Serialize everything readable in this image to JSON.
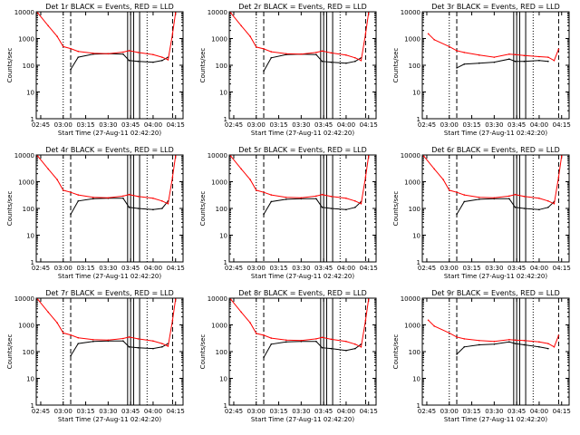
{
  "figure": {
    "xlabel": "Start Time (27-Aug-11 02:42:20)",
    "ylabel": "Counts/sec",
    "x_ticks": [
      "02:45",
      "03:00",
      "03:15",
      "03:30",
      "03:45",
      "04:00",
      "04:15"
    ],
    "y_ticks": [
      "1",
      "10",
      "100",
      "1000",
      "10000"
    ],
    "colors": {
      "events": "#000000",
      "lld": "#ff0000",
      "axis": "#000000"
    }
  },
  "chart_data": [
    {
      "type": "line",
      "title": "Det 1r BLACK = Events, RED = LLD",
      "xlim": [
        "02:42",
        "04:20"
      ],
      "ylim": [
        1,
        10000
      ],
      "yscale": "log",
      "x": [
        "02:43",
        "02:50",
        "02:56",
        "03:00",
        "03:05",
        "03:10",
        "03:20",
        "03:30",
        "03:40",
        "03:44",
        "03:50",
        "04:00",
        "04:06",
        "04:10",
        "04:13",
        "04:15"
      ],
      "series": [
        {
          "name": "Events",
          "values": [
            null,
            null,
            null,
            null,
            70,
            200,
            260,
            270,
            260,
            150,
            140,
            130,
            150,
            200,
            null,
            null
          ]
        },
        {
          "name": "LLD",
          "values": [
            9000,
            3000,
            1200,
            500,
            420,
            330,
            280,
            270,
            310,
            350,
            300,
            250,
            200,
            160,
            1500,
            9000
          ]
        }
      ],
      "markers": {
        "dotted": [
          "03:00",
          "03:56"
        ],
        "dashed": [
          "03:05",
          "04:13"
        ],
        "solid": [
          "03:43",
          "03:45",
          "03:47",
          "03:51"
        ]
      }
    },
    {
      "type": "line",
      "title": "Det 2r BLACK = Events, RED = LLD",
      "xlim": [
        "02:42",
        "04:20"
      ],
      "ylim": [
        1,
        10000
      ],
      "yscale": "log",
      "x": [
        "02:43",
        "02:50",
        "02:56",
        "03:00",
        "03:05",
        "03:10",
        "03:20",
        "03:30",
        "03:40",
        "03:44",
        "03:50",
        "04:00",
        "04:06",
        "04:10",
        "04:13",
        "04:15"
      ],
      "series": [
        {
          "name": "Events",
          "values": [
            null,
            null,
            null,
            null,
            60,
            190,
            250,
            260,
            250,
            140,
            130,
            120,
            140,
            190,
            null,
            null
          ]
        },
        {
          "name": "LLD",
          "values": [
            9000,
            3000,
            1200,
            480,
            410,
            320,
            270,
            260,
            300,
            340,
            290,
            240,
            190,
            150,
            1500,
            9000
          ]
        }
      ],
      "markers": {
        "dotted": [
          "03:00",
          "03:56"
        ],
        "dashed": [
          "03:05",
          "04:13"
        ],
        "solid": [
          "03:43",
          "03:45",
          "03:47",
          "03:51"
        ]
      }
    },
    {
      "type": "line",
      "title": "Det 3r BLACK = Events, RED = LLD",
      "xlim": [
        "02:42",
        "04:20"
      ],
      "ylim": [
        1,
        10000
      ],
      "yscale": "log",
      "x": [
        "02:46",
        "02:50",
        "03:00",
        "03:05",
        "03:10",
        "03:20",
        "03:30",
        "03:40",
        "03:44",
        "03:50",
        "04:00",
        "04:06",
        "04:10",
        "04:13"
      ],
      "series": [
        {
          "name": "Events",
          "values": [
            null,
            null,
            null,
            80,
            110,
            120,
            130,
            170,
            140,
            140,
            150,
            140,
            null,
            null
          ]
        },
        {
          "name": "LLD",
          "values": [
            1500,
            900,
            500,
            350,
            300,
            240,
            200,
            260,
            250,
            230,
            210,
            200,
            150,
            400
          ]
        }
      ],
      "markers": {
        "dotted": [
          "03:00",
          "03:56"
        ],
        "dashed": [
          "03:05",
          "04:13"
        ],
        "solid": [
          "03:43",
          "03:45",
          "03:47",
          "03:51"
        ]
      }
    },
    {
      "type": "line",
      "title": "Det 4r BLACK = Events, RED = LLD",
      "xlim": [
        "02:42",
        "04:20"
      ],
      "ylim": [
        1,
        10000
      ],
      "yscale": "log",
      "x": [
        "02:43",
        "02:50",
        "02:56",
        "03:00",
        "03:05",
        "03:10",
        "03:20",
        "03:30",
        "03:40",
        "03:44",
        "03:50",
        "04:00",
        "04:06",
        "04:10",
        "04:13",
        "04:15"
      ],
      "series": [
        {
          "name": "Events",
          "values": [
            null,
            null,
            null,
            null,
            60,
            190,
            230,
            240,
            240,
            110,
            100,
            90,
            100,
            190,
            null,
            null
          ]
        },
        {
          "name": "LLD",
          "values": [
            9000,
            3000,
            1200,
            480,
            400,
            320,
            260,
            250,
            290,
            330,
            280,
            240,
            190,
            150,
            1500,
            9000
          ]
        }
      ],
      "markers": {
        "dotted": [
          "03:00",
          "03:56"
        ],
        "dashed": [
          "03:05",
          "04:13"
        ],
        "solid": [
          "03:43",
          "03:45",
          "03:47",
          "03:51"
        ]
      }
    },
    {
      "type": "line",
      "title": "Det 5r BLACK = Events, RED = LLD",
      "xlim": [
        "02:42",
        "04:20"
      ],
      "ylim": [
        1,
        10000
      ],
      "yscale": "log",
      "x": [
        "02:43",
        "02:50",
        "02:56",
        "03:00",
        "03:05",
        "03:10",
        "03:20",
        "03:30",
        "03:40",
        "03:44",
        "03:50",
        "04:00",
        "04:06",
        "04:10",
        "04:13",
        "04:15"
      ],
      "series": [
        {
          "name": "Events",
          "values": [
            null,
            null,
            null,
            null,
            60,
            180,
            220,
            230,
            230,
            110,
            100,
            90,
            110,
            180,
            null,
            null
          ]
        },
        {
          "name": "LLD",
          "values": [
            9000,
            3000,
            1200,
            480,
            400,
            320,
            260,
            250,
            290,
            330,
            280,
            240,
            190,
            150,
            1500,
            9000
          ]
        }
      ],
      "markers": {
        "dotted": [
          "03:00",
          "03:56"
        ],
        "dashed": [
          "03:05",
          "04:13"
        ],
        "solid": [
          "03:43",
          "03:45",
          "03:47",
          "03:51"
        ]
      }
    },
    {
      "type": "line",
      "title": "Det 6r BLACK = Events, RED = LLD",
      "xlim": [
        "02:42",
        "04:20"
      ],
      "ylim": [
        1,
        10000
      ],
      "yscale": "log",
      "x": [
        "02:43",
        "02:50",
        "02:56",
        "03:00",
        "03:05",
        "03:10",
        "03:20",
        "03:30",
        "03:40",
        "03:44",
        "03:50",
        "04:00",
        "04:06",
        "04:10",
        "04:13",
        "04:15"
      ],
      "series": [
        {
          "name": "Events",
          "values": [
            null,
            null,
            null,
            null,
            60,
            180,
            220,
            230,
            230,
            110,
            100,
            90,
            110,
            180,
            null,
            null
          ]
        },
        {
          "name": "LLD",
          "values": [
            9000,
            3000,
            1200,
            480,
            400,
            320,
            260,
            250,
            290,
            330,
            280,
            240,
            190,
            150,
            1500,
            9000
          ]
        }
      ],
      "markers": {
        "dotted": [
          "03:00",
          "03:56"
        ],
        "dashed": [
          "03:05",
          "04:13"
        ],
        "solid": [
          "03:43",
          "03:45",
          "03:47",
          "03:51"
        ]
      }
    },
    {
      "type": "line",
      "title": "Det 7r BLACK = Events, RED = LLD",
      "xlim": [
        "02:42",
        "04:20"
      ],
      "ylim": [
        1,
        10000
      ],
      "yscale": "log",
      "x": [
        "02:43",
        "02:50",
        "02:56",
        "03:00",
        "03:05",
        "03:10",
        "03:20",
        "03:30",
        "03:40",
        "03:44",
        "03:50",
        "04:00",
        "04:06",
        "04:10",
        "04:13",
        "04:15"
      ],
      "series": [
        {
          "name": "Events",
          "values": [
            null,
            null,
            null,
            null,
            70,
            200,
            240,
            250,
            250,
            150,
            140,
            130,
            150,
            200,
            null,
            null
          ]
        },
        {
          "name": "LLD",
          "values": [
            9000,
            3000,
            1200,
            500,
            420,
            330,
            280,
            270,
            310,
            350,
            300,
            250,
            200,
            160,
            1500,
            9000
          ]
        }
      ],
      "markers": {
        "dotted": [
          "03:00",
          "03:56"
        ],
        "dashed": [
          "03:05",
          "04:13"
        ],
        "solid": [
          "03:43",
          "03:45",
          "03:47",
          "03:51"
        ]
      }
    },
    {
      "type": "line",
      "title": "Det 8r BLACK = Events, RED = LLD",
      "xlim": [
        "02:42",
        "04:20"
      ],
      "ylim": [
        1,
        10000
      ],
      "yscale": "log",
      "x": [
        "02:43",
        "02:50",
        "02:56",
        "03:00",
        "03:05",
        "03:10",
        "03:20",
        "03:30",
        "03:40",
        "03:44",
        "03:50",
        "04:00",
        "04:06",
        "04:10",
        "04:13",
        "04:15"
      ],
      "series": [
        {
          "name": "Events",
          "values": [
            null,
            null,
            null,
            null,
            60,
            190,
            230,
            240,
            240,
            140,
            130,
            110,
            130,
            190,
            null,
            null
          ]
        },
        {
          "name": "LLD",
          "values": [
            9000,
            3000,
            1200,
            480,
            410,
            320,
            270,
            260,
            300,
            340,
            290,
            240,
            190,
            150,
            1500,
            9000
          ]
        }
      ],
      "markers": {
        "dotted": [
          "03:00",
          "03:56"
        ],
        "dashed": [
          "03:05",
          "04:13"
        ],
        "solid": [
          "03:43",
          "03:45",
          "03:47",
          "03:51"
        ]
      }
    },
    {
      "type": "line",
      "title": "Det 9r BLACK = Events, RED = LLD",
      "xlim": [
        "02:42",
        "04:20"
      ],
      "ylim": [
        1,
        10000
      ],
      "yscale": "log",
      "x": [
        "02:46",
        "02:50",
        "03:00",
        "03:05",
        "03:10",
        "03:20",
        "03:30",
        "03:40",
        "03:44",
        "03:50",
        "04:00",
        "04:06",
        "04:10",
        "04:13"
      ],
      "series": [
        {
          "name": "Events",
          "values": [
            null,
            null,
            null,
            80,
            150,
            180,
            190,
            230,
            200,
            180,
            150,
            130,
            null,
            null
          ]
        },
        {
          "name": "LLD",
          "values": [
            1500,
            900,
            500,
            350,
            300,
            260,
            240,
            280,
            270,
            260,
            230,
            200,
            150,
            400
          ]
        }
      ],
      "markers": {
        "dotted": [
          "03:00",
          "03:56"
        ],
        "dashed": [
          "03:05",
          "04:13"
        ],
        "solid": [
          "03:43",
          "03:45",
          "03:47",
          "03:51"
        ]
      }
    }
  ]
}
